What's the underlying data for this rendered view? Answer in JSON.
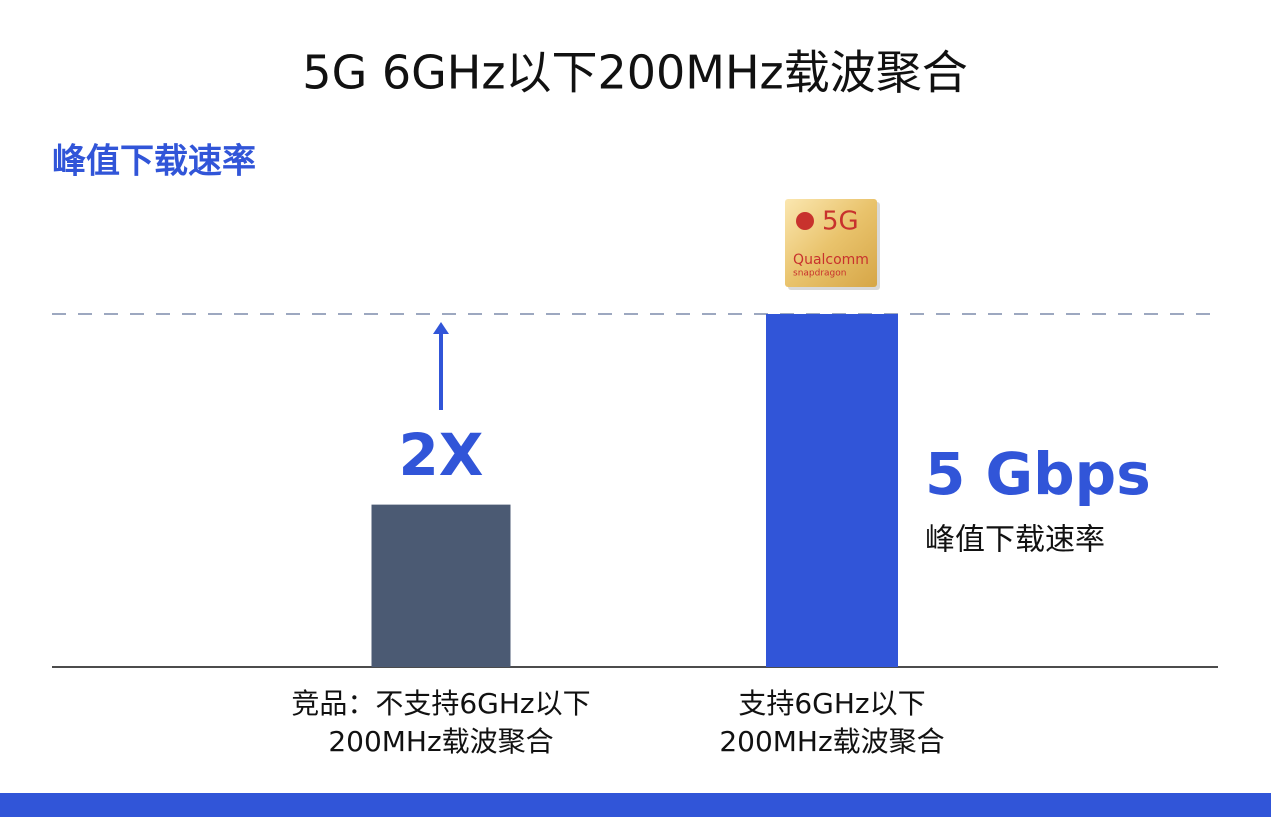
{
  "chart_data": {
    "type": "bar",
    "title": "5G 6GHz以下200MHz载波聚合",
    "subtitle": "峰值下载速率",
    "categories": [
      "竞品：不支持6GHz以下\n200MHz载波聚合",
      "支持6GHz以下\n200MHz载波聚合"
    ],
    "values": [
      2.3,
      5
    ],
    "colors": [
      "#4b5a73",
      "#3155d8"
    ],
    "value_labels": [
      null,
      "5 Gbps"
    ],
    "annotations": [
      "2X",
      "峰值下载速率"
    ],
    "badge": {
      "label": "5G",
      "brand": "Qualcomm",
      "product": "snapdragon"
    }
  }
}
